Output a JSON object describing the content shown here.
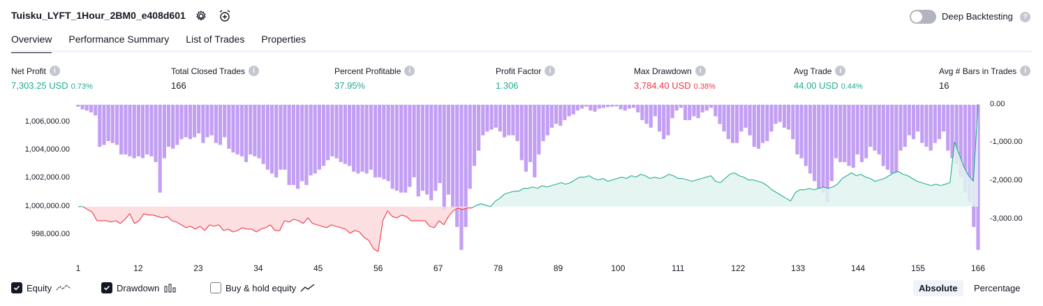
{
  "header": {
    "title": "Tuisku_LYFT_1Hour_2BM0_e408d601",
    "deep_backtesting_label": "Deep Backtesting",
    "help_glyph": "?"
  },
  "tabs": [
    "Overview",
    "Performance Summary",
    "List of Trades",
    "Properties"
  ],
  "stats": [
    {
      "label": "Net Profit",
      "value": "7,303.25 USD",
      "pct": "0.73%",
      "color": "green"
    },
    {
      "label": "Total Closed Trades",
      "value": "166",
      "pct": "",
      "color": "neutral"
    },
    {
      "label": "Percent Profitable",
      "value": "37.95%",
      "pct": "",
      "color": "green"
    },
    {
      "label": "Profit Factor",
      "value": "1.306",
      "pct": "",
      "color": "green"
    },
    {
      "label": "Max Drawdown",
      "value": "3,784.40 USD",
      "pct": "0.38%",
      "color": "red"
    },
    {
      "label": "Avg Trade",
      "value": "44.00 USD",
      "pct": "0.44%",
      "color": "green"
    },
    {
      "label": "Avg # Bars in Trades",
      "value": "16",
      "pct": "",
      "color": "neutral"
    }
  ],
  "legend": {
    "equity": "Equity",
    "drawdown": "Drawdown",
    "buy_hold": "Buy & hold equity"
  },
  "toggle": {
    "absolute": "Absolute",
    "percentage": "Percentage"
  },
  "chart_data": {
    "type": "line",
    "x_ticks": [
      "1",
      "12",
      "23",
      "34",
      "45",
      "56",
      "67",
      "78",
      "89",
      "100",
      "111",
      "122",
      "133",
      "144",
      "155",
      "166"
    ],
    "y_left_ticks": [
      "1,006,000.00",
      "1,004,000.00",
      "1,002,000.00",
      "1,000,000.00",
      "998,000.00"
    ],
    "y_right_ticks": [
      "0.00",
      "-1,000.00",
      "-2,000.00",
      "-3,000.00"
    ],
    "y_left_range": [
      996900,
      1007300
    ],
    "y_right_range": [
      -4000,
      0
    ],
    "baseline": 1000000,
    "colors": {
      "equity_up": "#22ab94",
      "equity_down": "#f23645",
      "drawdown": "#c39ff4",
      "fill_up": "#e0f3ef",
      "fill_down": "#fbd9dc"
    },
    "series": [
      {
        "name": "Equity",
        "values": [
          1000000,
          1000000,
          999800,
          999600,
          999000,
          999000,
          999000,
          998900,
          999000,
          998800,
          999100,
          999500,
          998800,
          999000,
          999500,
          999400,
          999400,
          999300,
          999200,
          999300,
          999000,
          998900,
          998700,
          998500,
          998600,
          998400,
          998600,
          998300,
          998700,
          998600,
          998700,
          998300,
          998400,
          998200,
          998300,
          998500,
          998400,
          998400,
          998200,
          998400,
          998500,
          998700,
          998300,
          998300,
          999000,
          998900,
          999100,
          999000,
          998800,
          999200,
          998800,
          998700,
          998600,
          998500,
          998700,
          998600,
          998500,
          998400,
          998100,
          998300,
          998200,
          997800,
          997600,
          997000,
          996800,
          999000,
          999700,
          999300,
          999200,
          999400,
          999300,
          999000,
          999000,
          999000,
          999000,
          998600,
          998500,
          999000,
          998700,
          999300,
          999700,
          999900,
          999800,
          999900,
          999900,
          1000100,
          1000200,
          1000100,
          1000000,
          1000400,
          1000600,
          1000900,
          1001000,
          1001100,
          1001100,
          1001300,
          1001300,
          1001400,
          1001300,
          1001500,
          1001400,
          1001500,
          1001600,
          1001700,
          1001600,
          1001700,
          1001900,
          1002100,
          1002100,
          1002200,
          1002000,
          1001900,
          1002000,
          1001800,
          1001900,
          1002000,
          1002100,
          1002000,
          1002200,
          1002100,
          1002300,
          1002200,
          1002000,
          1002100,
          1002000,
          1002100,
          1002300,
          1002200,
          1002000,
          1002000,
          1001900,
          1001800,
          1001900,
          1002000,
          1002100,
          1002200,
          1001800,
          1001700,
          1002000,
          1002300,
          1002400,
          1002200,
          1002100,
          1001900,
          1001900,
          1001800,
          1001700,
          1001500,
          1001200,
          1001000,
          1000800,
          1000600,
          1000400,
          1001000,
          1001200,
          1001200,
          1001300,
          1001200,
          1001300,
          1001400,
          1001300,
          1001400,
          1001600,
          1002000,
          1002200,
          1002400,
          1002200,
          1002300,
          1002100,
          1002000,
          1001800,
          1001900,
          1002000,
          1002200,
          1002400,
          1002500,
          1002300,
          1002200,
          1002000,
          1001800,
          1001700,
          1001600,
          1001500,
          1001600,
          1001500,
          1001600,
          1001700,
          1004600,
          1003700,
          1002800,
          1002200,
          1001800,
          1007300
        ]
      },
      {
        "name": "Drawdown",
        "values": [
          -50,
          -120,
          -150,
          -200,
          -280,
          -1100,
          -1050,
          -950,
          -1000,
          -1050,
          -1300,
          -1300,
          -1350,
          -1400,
          -1350,
          -1400,
          -1300,
          -1350,
          -1500,
          -2300,
          -1400,
          -1100,
          -1150,
          -1050,
          -900,
          -850,
          -900,
          -850,
          -750,
          -1000,
          -850,
          -800,
          -1000,
          -1050,
          -850,
          -1150,
          -1250,
          -1300,
          -1350,
          -1500,
          -1300,
          -1350,
          -1400,
          -1550,
          -1700,
          -1800,
          -1900,
          -1700,
          -1700,
          -2100,
          -2100,
          -2200,
          -2000,
          -2100,
          -1850,
          -1800,
          -1700,
          -1600,
          -1450,
          -1350,
          -1400,
          -1500,
          -1550,
          -1600,
          -1750,
          -1800,
          -1750,
          -1800,
          -1700,
          -1900,
          -1900,
          -1950,
          -2000,
          -2200,
          -2250,
          -2300,
          -2300,
          -2150,
          -1900,
          -2400,
          -2250,
          -2350,
          -2500,
          -2250,
          -2050,
          -2750,
          -2350,
          -2700,
          -3200,
          -3800,
          -3200,
          -2200,
          -1600,
          -1200,
          -800,
          -700,
          -650,
          -600,
          -700,
          -850,
          -800,
          -800,
          -950,
          -1450,
          -1750,
          -1500,
          -1900,
          -1300,
          -950,
          -800,
          -600,
          -500,
          -550,
          -400,
          -300,
          -250,
          -150,
          -100,
          -50,
          -150,
          -180,
          -100,
          -80,
          -60,
          -50,
          -40,
          -120,
          -150,
          -100,
          -80,
          -200,
          -400,
          -500,
          -600,
          -300,
          -700,
          -900,
          -800,
          -350,
          -150,
          -80,
          -400,
          -400,
          -300,
          -350,
          -200,
          -150,
          -80,
          -300,
          -500,
          -700,
          -900,
          -1000,
          -1000,
          -700,
          -600,
          -800,
          -1100,
          -1150,
          -1000,
          -950,
          -700,
          -500,
          -450,
          -600,
          -650,
          -900,
          -1300,
          -1400,
          -1600,
          -1800,
          -2000,
          -2200,
          -2300,
          -2550,
          -2000,
          -1400,
          -1500,
          -1500,
          -1600,
          -1650,
          -1300,
          -1500,
          -1400,
          -1100,
          -1200,
          -1300,
          -1600,
          -1700,
          -1800,
          -1800,
          -1200,
          -1100,
          -800,
          -900,
          -700,
          -1000,
          -1100,
          -1200,
          -1000,
          -900,
          -700,
          -1200,
          -1400,
          -1550,
          -1900,
          -2300,
          -2550,
          -3200,
          -3800
        ]
      }
    ]
  }
}
